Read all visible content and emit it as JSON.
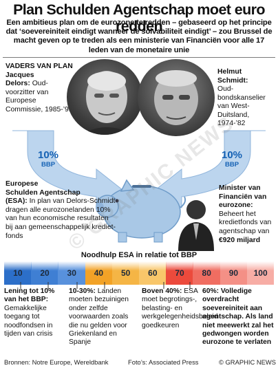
{
  "title": "Plan Schulden Agentschap moet euro redden",
  "subtitle": "Een ambitieus plan om de eurozone te redden – gebaseerd op het principe dat ‘soevereiniteit eindigt wanneer de solvabiliteit eindigt’ – zou Brussel de macht geven op te treden als een ministerie van Financiën voor alle 17 leden van de monetaire unie",
  "left_person": {
    "heading": "VADERS VAN PLAN",
    "name1": "Jacques",
    "name2": "Delors:",
    "desc": "Oud-voorzitter van Europese Commissie, 1985-’95"
  },
  "right_person": {
    "name1": "Helmut",
    "name2": "Schmidt:",
    "desc": "Oud-bondskanselier van West-Duitsland, 1974-’82"
  },
  "left_pct": {
    "value": "10%",
    "label": "BBP"
  },
  "right_pct": {
    "value": "10%",
    "label": "BBP"
  },
  "esa": {
    "title1": "Europese",
    "title2": "Schulden Agentschap",
    "title3": "(ESA):",
    "text": "In plan van Delors-Schmidt dragen alle eurozonelanden 10% van hun economische resultaten bij aan gemeenschappelijk krediet-fonds"
  },
  "minister": {
    "title": "Minister van Financiën van eurozone:",
    "text": "Beheert het kredietfonds van agentschap van",
    "amount": "€920 miljard"
  },
  "scale": {
    "title": "Noodhulp ESA in relatie tot BBP",
    "cells": [
      {
        "label": "10",
        "color": "#2c6fc9"
      },
      {
        "label": "20",
        "color": "#3f7fd3"
      },
      {
        "label": "30",
        "color": "#5891dc"
      },
      {
        "label": "40",
        "color": "#f2a227"
      },
      {
        "label": "50",
        "color": "#f5b545"
      },
      {
        "label": "60",
        "color": "#f8c66a"
      },
      {
        "label": "70",
        "color": "#ec4a3c"
      },
      {
        "label": "80",
        "color": "#f06d61"
      },
      {
        "label": "90",
        "color": "#f49086"
      },
      {
        "label": "100",
        "color": "#f7ada5"
      }
    ]
  },
  "boxes": [
    {
      "head": "Lening tot 10% van het BBP:",
      "text": "Gemakkelijke toegang tot noodfondsen in tijden van crisis"
    },
    {
      "head": "10-30%:",
      "text": "Landen moeten bezuinigen onder zelfde voorwaarden zoals die nu gelden voor Griekenland en Spanje"
    },
    {
      "head": "Boven 40%:",
      "text": "ESA moet begrotings-, belasting- en werkgelegenheidsbeleid goedkeuren"
    },
    {
      "head": "60%: Volledige overdracht soevereiniteit aan agentschap. Als land niet meewerkt zal het gedwongen worden eurozone te verlaten",
      "text": ""
    }
  ],
  "footer": {
    "sources": "Bronnen: Notre Europe, Wereldbank",
    "photos": "Foto’s: Associated Press",
    "credit": "© GRAPHIC NEWS"
  },
  "watermark": "© GRAPHIC NEWS",
  "colors": {
    "accent_blue": "#1461b4",
    "arrow_fill": "#bcd5ee",
    "piggy": "#a9c8e6",
    "rule": "#7a7a7a"
  }
}
